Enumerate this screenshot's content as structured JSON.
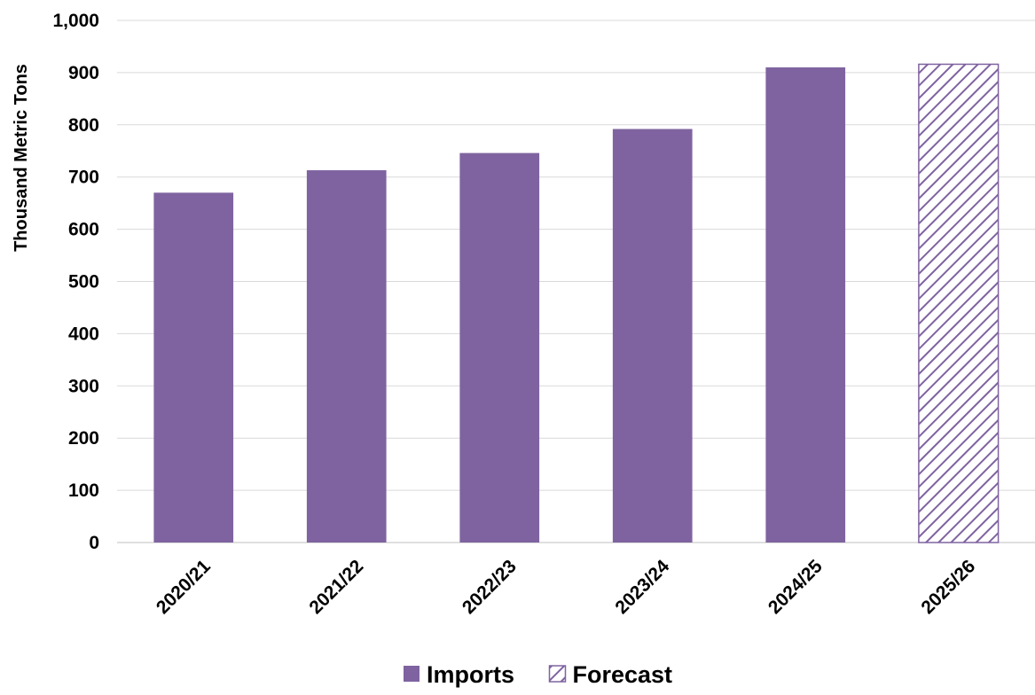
{
  "chart_data": {
    "type": "bar",
    "title": "",
    "xlabel": "",
    "ylabel": "Thousand Metric Tons",
    "ylim": [
      0,
      1000
    ],
    "yticks": [
      0,
      100,
      200,
      300,
      400,
      500,
      600,
      700,
      800,
      900,
      1000
    ],
    "ytick_labels": [
      "0",
      "100",
      "200",
      "300",
      "400",
      "500",
      "600",
      "700",
      "800",
      "900",
      "1,000"
    ],
    "categories": [
      "2020/21",
      "2021/22",
      "2022/23",
      "2023/24",
      "2024/25",
      "2025/26"
    ],
    "values": [
      670,
      713,
      746,
      792,
      910,
      916
    ],
    "forecast": [
      false,
      false,
      false,
      false,
      false,
      true
    ],
    "grid": true,
    "legend": {
      "placement": "bottom",
      "entries": [
        {
          "label": "Imports",
          "style": "solid"
        },
        {
          "label": "Forecast",
          "style": "hatched"
        }
      ]
    },
    "colors": {
      "bar": "#7f63a0",
      "grid": "#d9d9d9",
      "axis": "#bfbfbf"
    }
  }
}
